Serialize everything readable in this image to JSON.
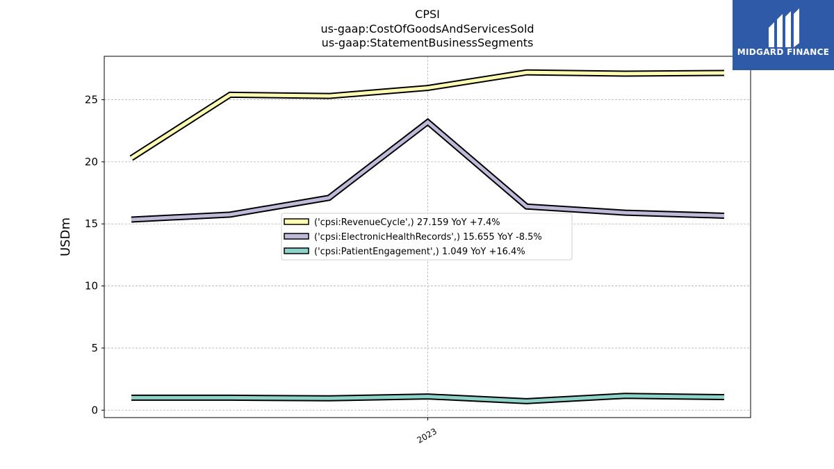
{
  "header": {
    "title_lines": [
      "CPSI",
      "us-gaap:CostOfGoodsAndServicesSold",
      "us-gaap:StatementBusinessSegments"
    ]
  },
  "logo": {
    "text": "MIDGARD FINANCE",
    "color": "#2e5aa8"
  },
  "chart_data": {
    "type": "line",
    "title": "CPSI\nus-gaap:CostOfGoodsAndServicesSold\nus-gaap:StatementBusinessSegments",
    "xlabel": "",
    "ylabel": "USDm",
    "x_ticks": [
      "2023"
    ],
    "y_ticks": [
      0,
      5,
      10,
      15,
      20,
      25
    ],
    "ylim": [
      -0.6,
      28.5
    ],
    "grid": true,
    "legend_position": "center",
    "x_count": 7,
    "series": [
      {
        "name": "('cpsi:RevenueCycle',) 27.159 YoY +7.4%",
        "color": "#ffffb3",
        "values": [
          20.3,
          25.4,
          25.3,
          25.95,
          27.2,
          27.1,
          27.16
        ]
      },
      {
        "name": "('cpsi:ElectronicHealthRecords',) 15.655 YoY -8.5%",
        "color": "#bebada",
        "values": [
          15.35,
          15.75,
          17.1,
          23.2,
          16.4,
          15.9,
          15.66
        ]
      },
      {
        "name": "('cpsi:PatientEngagement',) 1.049 YoY +16.4%",
        "color": "#8dd3c7",
        "values": [
          1.0,
          1.0,
          0.95,
          1.1,
          0.72,
          1.15,
          1.05
        ]
      }
    ]
  }
}
